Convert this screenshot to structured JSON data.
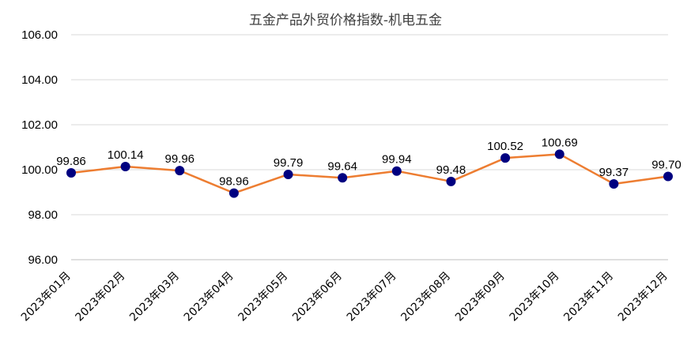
{
  "chart_data": {
    "type": "line",
    "title": "五金产品外贸价格指数-机电五金",
    "xlabel": "",
    "ylabel": "",
    "categories": [
      "2023年01月",
      "2023年02月",
      "2023年03月",
      "2023年04月",
      "2023年05月",
      "2023年06月",
      "2023年07月",
      "2023年08月",
      "2023年09月",
      "2023年10月",
      "2023年11月",
      "2023年12月"
    ],
    "series": [
      {
        "values": [
          99.86,
          100.14,
          99.96,
          98.96,
          99.79,
          99.64,
          99.94,
          99.48,
          100.52,
          100.69,
          99.37,
          99.7
        ]
      }
    ],
    "data_labels": [
      "99.86",
      "100.14",
      "99.96",
      "98.96",
      "99.79",
      "99.64",
      "99.94",
      "99.48",
      "100.52",
      "100.69",
      "99.37",
      "99.70"
    ],
    "ylim": [
      96,
      106
    ],
    "yticks": [
      96,
      98,
      100,
      102,
      104,
      106
    ],
    "ytick_labels": [
      "96.00",
      "98.00",
      "100.00",
      "102.00",
      "104.00",
      "106.00"
    ],
    "grid": true,
    "legend": "none",
    "colors": {
      "line": "#ED7D31",
      "marker": "#000080",
      "grid": "#D9D9D9"
    }
  }
}
